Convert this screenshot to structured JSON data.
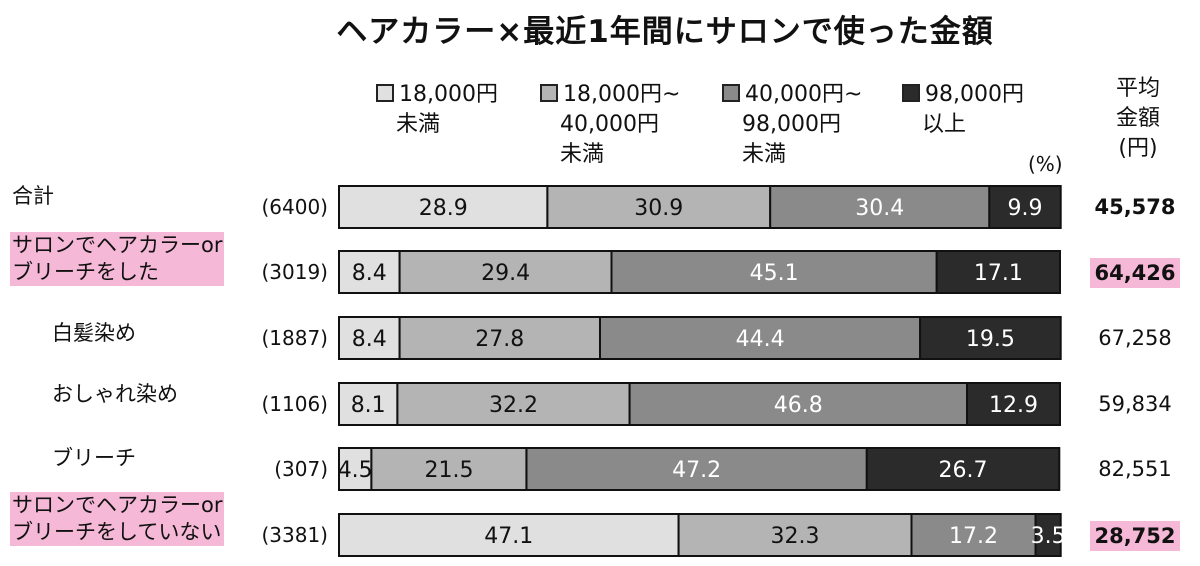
{
  "title": "ヘアカラー×最近1年間にサロンで使った金額",
  "unit": "(%)",
  "avg_header": [
    "平均",
    "金額",
    "(円)"
  ],
  "colors": {
    "seg1": "#e0e0e0",
    "seg2": "#b4b4b4",
    "seg3": "#8a8a8a",
    "seg4": "#2b2b2b",
    "highlight": "#f5b8d6"
  },
  "legend": [
    {
      "lines": [
        "18,000円",
        "未満"
      ]
    },
    {
      "lines": [
        "18,000円~",
        "40,000円",
        "未満"
      ]
    },
    {
      "lines": [
        "40,000円~",
        "98,000円",
        "未満"
      ]
    },
    {
      "lines": [
        "98,000円",
        "以上"
      ]
    }
  ],
  "rows": [
    {
      "label": [
        "合計"
      ],
      "n": "(6400)",
      "avg": "45,578"
    },
    {
      "label": [
        "サロンでヘアカラーor",
        "ブリーチをした"
      ],
      "n": "(3019)",
      "avg": "64,426"
    },
    {
      "label": [
        "白髪染め"
      ],
      "n": "(1887)",
      "avg": "67,258"
    },
    {
      "label": [
        "おしゃれ染め"
      ],
      "n": "(1106)",
      "avg": "59,834"
    },
    {
      "label": [
        "ブリーチ"
      ],
      "n": "(307)",
      "avg": "82,551"
    },
    {
      "label": [
        "サロンでヘアカラーor",
        "ブリーチをしていない"
      ],
      "n": "(3381)",
      "avg": "28,752"
    }
  ],
  "chart_data": {
    "type": "bar",
    "orientation": "horizontal-stacked-100",
    "title": "ヘアカラー×最近1年間にサロンで使った金額",
    "unit": "%",
    "categories": [
      "合計",
      "サロンでヘアカラーorブリーチをした",
      "白髪染め",
      "おしゃれ染め",
      "ブリーチ",
      "サロンでヘアカラーorブリーチをしていない"
    ],
    "series": [
      {
        "name": "18,000円未満",
        "values": [
          28.9,
          8.4,
          8.4,
          8.1,
          4.5,
          47.1
        ]
      },
      {
        "name": "18,000円~40,000円未満",
        "values": [
          30.9,
          29.4,
          27.8,
          32.2,
          21.5,
          32.3
        ]
      },
      {
        "name": "40,000円~98,000円未満",
        "values": [
          30.4,
          45.1,
          44.4,
          46.8,
          47.2,
          17.2
        ]
      },
      {
        "name": "98,000円以上",
        "values": [
          9.9,
          17.1,
          19.5,
          12.9,
          26.7,
          3.5
        ]
      }
    ],
    "legend_position": "top",
    "grid": false
  }
}
